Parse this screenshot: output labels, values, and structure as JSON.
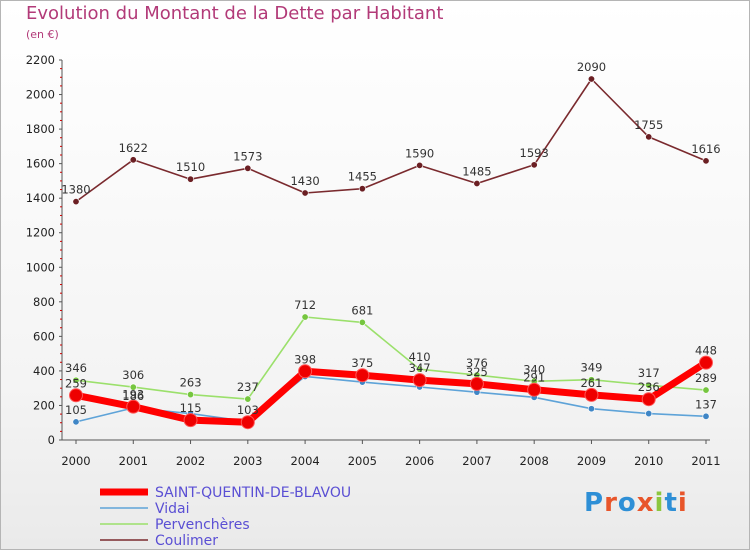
{
  "title": "Evolution du Montant de la Dette par Habitant",
  "subtitle": "(en €)",
  "logo": {
    "text": "Proxiti",
    "letters": [
      "P",
      "r",
      "o",
      "x",
      "i",
      "t",
      "i"
    ],
    "colors": [
      "#2e8fd6",
      "#e8552a",
      "#2e8fd6",
      "#e8552a",
      "#8cc63f",
      "#2e8fd6",
      "#e8552a"
    ]
  },
  "chart_data": {
    "type": "line",
    "title": "Evolution du Montant de la Dette par Habitant",
    "subtitle": "(en €)",
    "xlabel": "",
    "ylabel": "",
    "x": [
      "2000",
      "2001",
      "2002",
      "2003",
      "2004",
      "2005",
      "2006",
      "2007",
      "2008",
      "2009",
      "2010",
      "2011"
    ],
    "ylim": [
      0,
      2200
    ],
    "yticks": [
      0,
      200,
      400,
      600,
      800,
      1000,
      1200,
      1400,
      1600,
      1800,
      2000,
      2200
    ],
    "grid": false,
    "legend": "bottom-left",
    "series": [
      {
        "name": "SAINT-QUENTIN-DE-BLAVOU",
        "color": "#ff0000",
        "marker_color": "#ee0000",
        "values": [
          259,
          193,
          115,
          103,
          398,
          375,
          347,
          325,
          291,
          261,
          236,
          448
        ],
        "labels": [
          "259",
          "193",
          "115",
          "103",
          "398",
          "375",
          "347",
          "325",
          "291",
          "261",
          "236",
          "448"
        ]
      },
      {
        "name": "Vidai",
        "color": "#5ea3d8",
        "marker_color": "#3f86c6",
        "values": [
          105,
          186,
          153,
          107,
          368,
          335,
          307,
          277,
          247,
          181,
          153,
          137
        ],
        "labels": [
          "105",
          "186",
          "",
          "",
          "",
          "",
          "",
          "",
          "",
          "",
          "",
          "137"
        ]
      },
      {
        "name": "Pervenchères",
        "color": "#9be06b",
        "marker_color": "#76c63f",
        "values": [
          346,
          306,
          263,
          237,
          712,
          681,
          410,
          376,
          340,
          349,
          317,
          289
        ],
        "labels": [
          "346",
          "306",
          "263",
          "237",
          "712",
          "681",
          "410",
          "376",
          "340",
          "349",
          "317",
          "289"
        ]
      },
      {
        "name": "Coulimer",
        "color": "#7a2a2e",
        "marker_color": "#6b1f23",
        "values": [
          1380,
          1622,
          1510,
          1573,
          1430,
          1455,
          1590,
          1485,
          1593,
          2090,
          1755,
          1616
        ],
        "labels": [
          "1380",
          "1622",
          "1510",
          "1573",
          "1430",
          "1455",
          "1590",
          "1485",
          "1593",
          "2090",
          "1755",
          "1616"
        ]
      }
    ]
  }
}
